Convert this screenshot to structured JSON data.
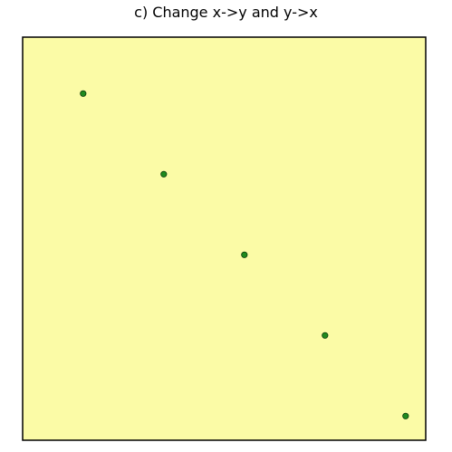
{
  "chart_data": {
    "type": "scatter",
    "title": "c) Change x->y and y->x",
    "xlabel": "",
    "ylabel": "",
    "xlim": [
      0,
      1
    ],
    "ylim": [
      0,
      1
    ],
    "grid": false,
    "points": [
      {
        "x": 0.15,
        "y": 0.86
      },
      {
        "x": 0.35,
        "y": 0.66
      },
      {
        "x": 0.55,
        "y": 0.46
      },
      {
        "x": 0.75,
        "y": 0.26
      },
      {
        "x": 0.95,
        "y": 0.06
      }
    ],
    "colors": {
      "plot_background": "#fbfba6",
      "point_fill": "#1f8a1f",
      "point_stroke": "#0a3a0a",
      "frame": "#000000"
    }
  }
}
